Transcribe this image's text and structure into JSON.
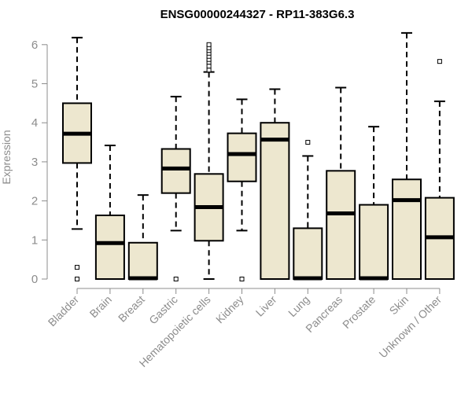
{
  "chart_data": {
    "type": "boxplot",
    "title": "ENSG00000244327 - RP11-383G6.3",
    "xlabel": "",
    "ylabel": "Expression",
    "ylim": [
      0,
      6.3
    ],
    "yticks": [
      0,
      1,
      2,
      3,
      4,
      5,
      6
    ],
    "categories": [
      "Bladder",
      "Brain",
      "Breast",
      "Gastric",
      "Hematopoietic cells",
      "Kidney",
      "Liver",
      "Lung",
      "Pancreas",
      "Prostate",
      "Skin",
      "Unknown / Other"
    ],
    "boxes": [
      {
        "min": 1.28,
        "q1": 2.97,
        "median": 3.72,
        "q3": 4.5,
        "max": 6.18,
        "outliers": [
          0.3,
          0.0
        ]
      },
      {
        "min": 0.0,
        "q1": 0.0,
        "median": 0.92,
        "q3": 1.63,
        "max": 3.42,
        "outliers": []
      },
      {
        "min": 0.0,
        "q1": 0.0,
        "median": 0.02,
        "q3": 0.93,
        "max": 2.15,
        "outliers": []
      },
      {
        "min": 1.24,
        "q1": 2.2,
        "median": 2.83,
        "q3": 3.33,
        "max": 4.67,
        "outliers": [
          0.0
        ]
      },
      {
        "min": 0.0,
        "q1": 0.98,
        "median": 1.84,
        "q3": 2.69,
        "max": 5.3,
        "outliers": [
          5.35,
          5.45,
          5.55,
          5.62,
          5.7,
          5.78,
          5.85,
          5.92,
          6.0
        ]
      },
      {
        "min": 1.24,
        "q1": 2.5,
        "median": 3.2,
        "q3": 3.73,
        "max": 4.6,
        "outliers": [
          0.0
        ]
      },
      {
        "min": 0.0,
        "q1": 0.0,
        "median": 3.57,
        "q3": 4.0,
        "max": 4.86,
        "outliers": []
      },
      {
        "min": 0.0,
        "q1": 0.0,
        "median": 0.02,
        "q3": 1.3,
        "max": 3.15,
        "outliers": [
          3.5
        ]
      },
      {
        "min": 0.0,
        "q1": 0.0,
        "median": 1.68,
        "q3": 2.77,
        "max": 4.9,
        "outliers": []
      },
      {
        "min": 0.0,
        "q1": 0.0,
        "median": 0.02,
        "q3": 1.9,
        "max": 3.9,
        "outliers": []
      },
      {
        "min": 0.0,
        "q1": 0.0,
        "median": 2.02,
        "q3": 2.55,
        "max": 6.3,
        "outliers": []
      },
      {
        "min": 0.0,
        "q1": 0.0,
        "median": 1.07,
        "q3": 2.08,
        "max": 4.55,
        "outliers": [
          5.57
        ]
      }
    ],
    "colors": {
      "box_fill": "#EDE7CF",
      "stroke": "#000000",
      "axis_text": "#8c8c8c"
    },
    "grid": false,
    "legend": "none"
  }
}
